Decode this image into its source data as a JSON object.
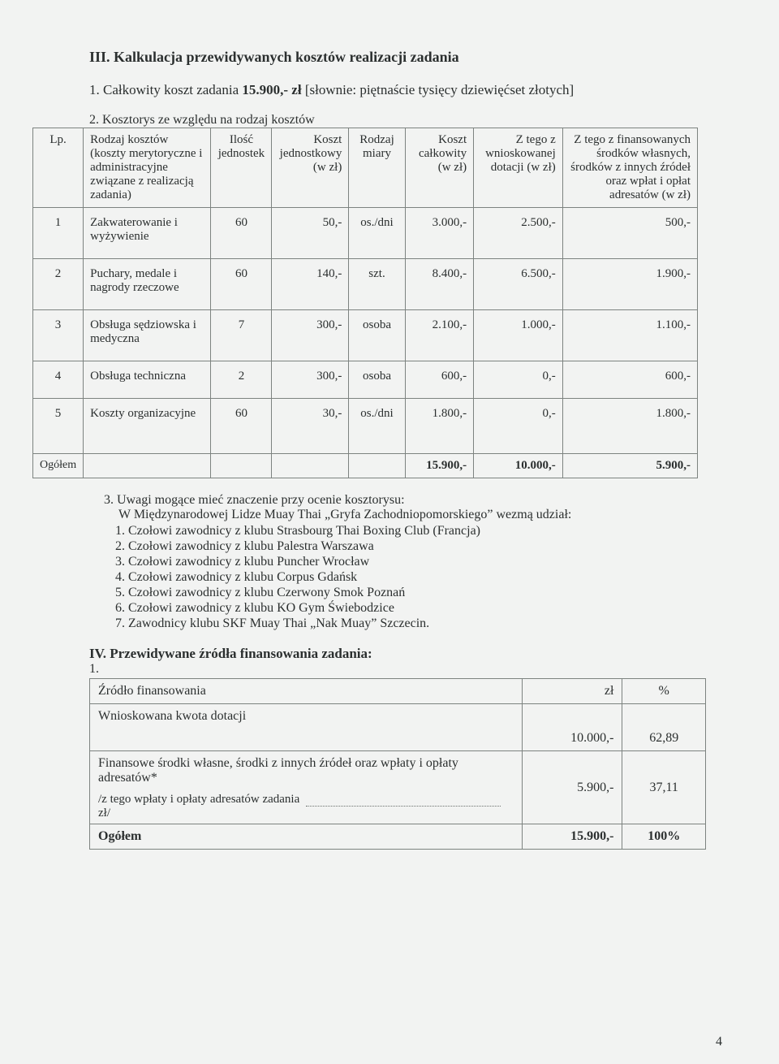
{
  "section3": {
    "heading": "III. Kalkulacja przewidywanych kosztów realizacji zadania",
    "line1_prefix": "1. Całkowity koszt zadania ",
    "line1_amount": "15.900,- zł",
    "line1_suffix": " [słownie: piętnaście tysięcy dziewięćset złotych]",
    "line2": "2. Kosztorys ze względu na rodzaj kosztów"
  },
  "table1": {
    "headers": {
      "lp": "Lp.",
      "rodzaj": "Rodzaj kosztów (koszty merytoryczne i administracyjne związane z realizacją zadania)",
      "ilosc": "Ilość jednostek",
      "koszt_jedn": "Koszt jednostkowy (w zł)",
      "rodzaj_miary": "Rodzaj miary",
      "koszt_calk": "Koszt całkowity (w zł)",
      "z_wniosk": "Z tego z wnioskowanej dotacji (w zł)",
      "z_fin": "Z tego z finansowanych środków własnych, środków z innych źródeł oraz wpłat i opłat adresatów (w zł)"
    },
    "rows": [
      {
        "lp": "1",
        "rodzaj": "Zakwaterowanie i wyżywienie",
        "ilosc": "60",
        "kj": "50,-",
        "rm": "os./dni",
        "kc": "3.000,-",
        "zw": "2.500,-",
        "zf": "500,-"
      },
      {
        "lp": "2",
        "rodzaj": "Puchary, medale i nagrody rzeczowe",
        "ilosc": "60",
        "kj": "140,-",
        "rm": "szt.",
        "kc": "8.400,-",
        "zw": "6.500,-",
        "zf": "1.900,-"
      },
      {
        "lp": "3",
        "rodzaj": "Obsługa sędziowska i medyczna",
        "ilosc": "7",
        "kj": "300,-",
        "rm": "osoba",
        "kc": "2.100,-",
        "zw": "1.000,-",
        "zf": "1.100,-"
      },
      {
        "lp": "4",
        "rodzaj": "Obsługa techniczna",
        "ilosc": "2",
        "kj": "300,-",
        "rm": "osoba",
        "kc": "600,-",
        "zw": "0,-",
        "zf": "600,-"
      },
      {
        "lp": "5",
        "rodzaj": "Koszty organizacyjne",
        "ilosc": "60",
        "kj": "30,-",
        "rm": "os./dni",
        "kc": "1.800,-",
        "zw": "0,-",
        "zf": "1.800,-"
      }
    ],
    "total": {
      "label": "Ogółem",
      "kc": "15.900,-",
      "zw": "10.000,-",
      "zf": "5.900,-"
    }
  },
  "notes": {
    "title": "3. Uwagi mogące mieć znaczenie przy ocenie kosztorysu:",
    "intro": "W Międzynarodowej Lidze Muay Thai „Gryfa Zachodniopomorskiego” wezmą udział:",
    "items": [
      "Czołowi zawodnicy z klubu Strasbourg Thai Boxing Club (Francja)",
      "Czołowi zawodnicy z klubu Palestra Warszawa",
      "Czołowi zawodnicy z klubu Puncher Wrocław",
      "Czołowi zawodnicy z klubu Corpus Gdańsk",
      "Czołowi zawodnicy z klubu Czerwony Smok Poznań",
      "Czołowi zawodnicy z klubu KO Gym Świebodzice",
      "Zawodnicy klubu SKF Muay Thai „Nak Muay” Szczecin."
    ]
  },
  "section4": {
    "heading": "IV. Przewidywane źródła finansowania zadania:",
    "one": "1."
  },
  "table2": {
    "headers": {
      "src": "Źródło finansowania",
      "zl": "zł",
      "pc": "%"
    },
    "rows": [
      {
        "src": "Wnioskowana kwota dotacji",
        "zl": "10.000,-",
        "pc": "62,89"
      },
      {
        "src": "Finansowe środki własne, środki z innych źródeł oraz wpłaty i opłaty adresatów*",
        "zl": "5.900,-",
        "pc": "37,11",
        "footnote_prefix": "/z tego wpłaty i opłaty adresatów zadania ",
        "footnote_suffix": " zł/"
      }
    ],
    "total": {
      "label": "Ogółem",
      "zl": "15.900,-",
      "pc": "100%"
    }
  },
  "page_number": "4"
}
